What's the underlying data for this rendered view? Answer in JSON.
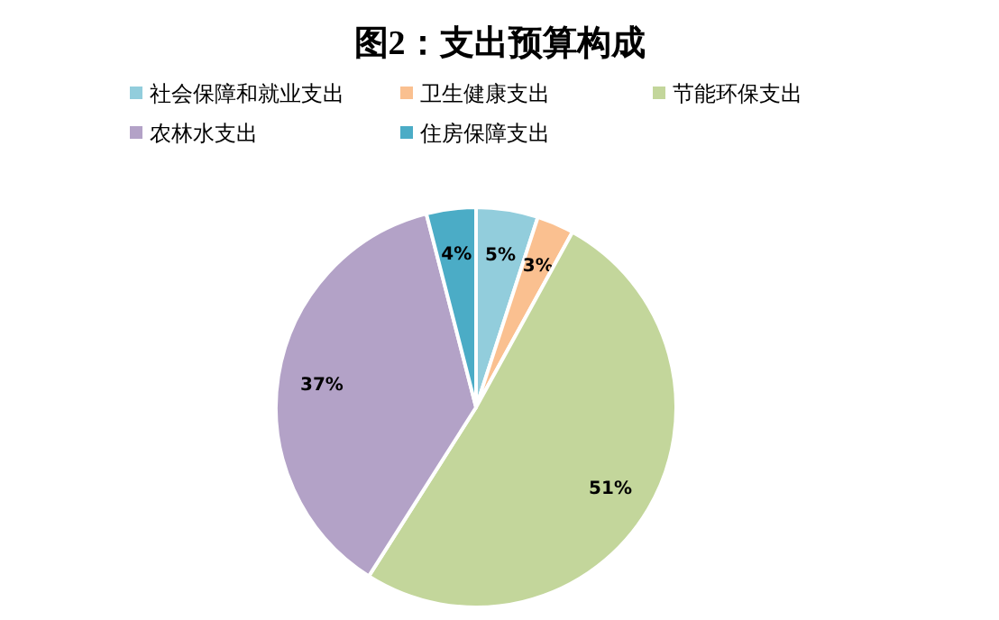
{
  "chart_data": {
    "type": "pie",
    "title": "图2：支出预算构成",
    "categories": [
      "社会保障和就业支出",
      "卫生健康支出",
      "节能环保支出",
      "农林水支出",
      "住房保障支出"
    ],
    "values": [
      5,
      3,
      51,
      37,
      4
    ],
    "colors": [
      "#92cddc",
      "#fac090",
      "#c3d69b",
      "#b3a2c7",
      "#4bacc6"
    ],
    "value_labels": [
      "5%",
      "3%",
      "51%",
      "37%",
      "4%"
    ],
    "legend": "top"
  }
}
